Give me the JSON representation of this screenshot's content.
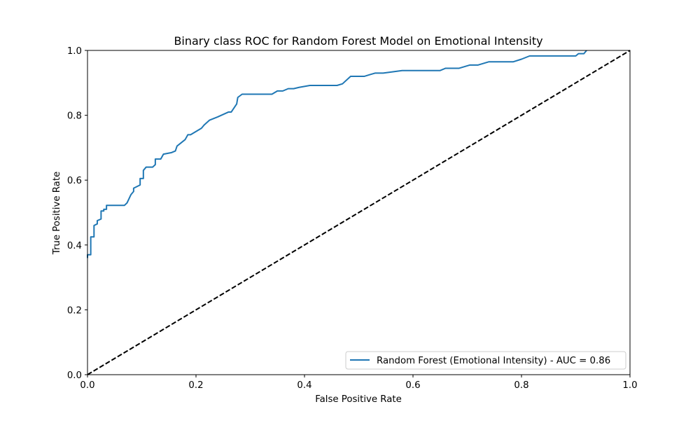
{
  "chart_data": {
    "type": "line",
    "title": "Binary class ROC for Random Forest Model on Emotional Intensity",
    "xlabel": "False Positive Rate",
    "ylabel": "True Positive Rate",
    "xlim": [
      0.0,
      1.0
    ],
    "ylim": [
      0.0,
      1.0
    ],
    "x_ticks": [
      "0.0",
      "0.2",
      "0.4",
      "0.6",
      "0.8",
      "1.0"
    ],
    "y_ticks": [
      "0.0",
      "0.2",
      "0.4",
      "0.6",
      "0.8",
      "1.0"
    ],
    "grid": false,
    "legend_position": "lower-right",
    "series": [
      {
        "name": "Random Forest (Emotional Intensity) - AUC = 0.86",
        "color": "#1f77b4",
        "linestyle": "solid",
        "x": [
          0.0,
          0.0,
          0.006,
          0.006,
          0.012,
          0.012,
          0.018,
          0.018,
          0.025,
          0.025,
          0.03,
          0.03,
          0.035,
          0.035,
          0.068,
          0.073,
          0.08,
          0.085,
          0.085,
          0.097,
          0.097,
          0.103,
          0.103,
          0.108,
          0.12,
          0.125,
          0.125,
          0.135,
          0.14,
          0.155,
          0.162,
          0.165,
          0.18,
          0.185,
          0.19,
          0.2,
          0.21,
          0.215,
          0.225,
          0.24,
          0.26,
          0.265,
          0.275,
          0.277,
          0.285,
          0.34,
          0.35,
          0.36,
          0.37,
          0.38,
          0.39,
          0.41,
          0.46,
          0.47,
          0.485,
          0.51,
          0.52,
          0.53,
          0.545,
          0.58,
          0.65,
          0.66,
          0.685,
          0.705,
          0.72,
          0.74,
          0.785,
          0.8,
          0.815,
          0.9,
          0.905,
          0.915,
          0.92
        ],
        "y": [
          0.36,
          0.37,
          0.37,
          0.425,
          0.425,
          0.46,
          0.465,
          0.475,
          0.48,
          0.505,
          0.505,
          0.51,
          0.51,
          0.522,
          0.522,
          0.53,
          0.555,
          0.565,
          0.575,
          0.585,
          0.605,
          0.605,
          0.63,
          0.64,
          0.64,
          0.648,
          0.665,
          0.665,
          0.68,
          0.685,
          0.69,
          0.705,
          0.725,
          0.74,
          0.74,
          0.75,
          0.76,
          0.77,
          0.785,
          0.795,
          0.81,
          0.81,
          0.835,
          0.855,
          0.865,
          0.865,
          0.875,
          0.875,
          0.882,
          0.882,
          0.886,
          0.892,
          0.892,
          0.897,
          0.92,
          0.92,
          0.925,
          0.93,
          0.93,
          0.938,
          0.938,
          0.945,
          0.945,
          0.955,
          0.955,
          0.965,
          0.965,
          0.973,
          0.983,
          0.983,
          0.99,
          0.99,
          1.0
        ]
      },
      {
        "color": "#000000",
        "linestyle": "dashed",
        "x": [
          0.0,
          1.0
        ],
        "y": [
          0.0,
          1.0
        ]
      }
    ]
  }
}
